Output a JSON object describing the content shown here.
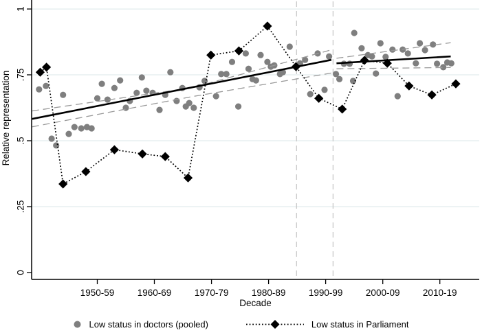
{
  "chart_data": {
    "type": "scatter",
    "title": "",
    "xlabel": "Decade",
    "ylabel": "Relative representation",
    "x_range": [
      1943,
      2021.4
    ],
    "y_range": [
      -0.026,
      1.034
    ],
    "x_ticks": [
      {
        "label": "1950-59",
        "year": 1954.5
      },
      {
        "label": "1960-69",
        "year": 1964.5
      },
      {
        "label": "1970-79",
        "year": 1974.5
      },
      {
        "label": "1980-89",
        "year": 1984.5
      },
      {
        "label": "1990-99",
        "year": 1994.5
      },
      {
        "label": "2000-09",
        "year": 2004.5
      },
      {
        "label": "2010-19",
        "year": 2014.5
      }
    ],
    "y_ticks": [
      {
        "label": "0",
        "value": 0
      },
      {
        "label": ".25",
        "value": 0.25
      },
      {
        "label": ".5",
        "value": 0.5
      },
      {
        "label": ".75",
        "value": 0.75
      },
      {
        "label": "1",
        "value": 1
      }
    ],
    "gridlines": {
      "values": [
        0.25,
        0.5,
        0.75,
        1
      ],
      "color": "#e2ecee"
    },
    "reference_lines": {
      "vertical_years": [
        1989.4,
        1995.8
      ],
      "color": "#c8c8c8",
      "style": "dashed"
    },
    "series": [
      {
        "name": "Low status in doctors (pooled)",
        "role": "scatter",
        "marker": "circle",
        "color": "#7f7f7f",
        "points": [
          [
            1944.3,
            0.695
          ],
          [
            1945.5,
            0.708
          ],
          [
            1946.5,
            0.508
          ],
          [
            1947.3,
            0.482
          ],
          [
            1948.5,
            0.674
          ],
          [
            1949.5,
            0.526
          ],
          [
            1950.5,
            0.552
          ],
          [
            1951.7,
            0.547
          ],
          [
            1952.7,
            0.552
          ],
          [
            1953.5,
            0.547
          ],
          [
            1954.5,
            0.661
          ],
          [
            1955.3,
            0.716
          ],
          [
            1956.3,
            0.656
          ],
          [
            1957.5,
            0.7
          ],
          [
            1958.5,
            0.729
          ],
          [
            1959.5,
            0.625
          ],
          [
            1960.2,
            0.651
          ],
          [
            1961.4,
            0.682
          ],
          [
            1962.3,
            0.74
          ],
          [
            1963.1,
            0.69
          ],
          [
            1964.2,
            0.682
          ],
          [
            1965.4,
            0.617
          ],
          [
            1966.4,
            0.674
          ],
          [
            1967.3,
            0.76
          ],
          [
            1968.4,
            0.651
          ],
          [
            1969.4,
            0.7
          ],
          [
            1970.0,
            0.63
          ],
          [
            1970.6,
            0.643
          ],
          [
            1971.4,
            0.625
          ],
          [
            1972.4,
            0.703
          ],
          [
            1973.3,
            0.727
          ],
          [
            1975.3,
            0.669
          ],
          [
            1976.2,
            0.753
          ],
          [
            1977.1,
            0.753
          ],
          [
            1978.1,
            0.799
          ],
          [
            1979.2,
            0.63
          ],
          [
            1980.5,
            0.831
          ],
          [
            1981.0,
            0.773
          ],
          [
            1981.7,
            0.734
          ],
          [
            1982.3,
            0.729
          ],
          [
            1983.1,
            0.825
          ],
          [
            1984.3,
            0.799
          ],
          [
            1984.9,
            0.781
          ],
          [
            1985.5,
            0.786
          ],
          [
            1986.5,
            0.753
          ],
          [
            1987.0,
            0.76
          ],
          [
            1988.2,
            0.857
          ],
          [
            1990.0,
            0.794
          ],
          [
            1990.9,
            0.807
          ],
          [
            1991.8,
            0.677
          ],
          [
            1993.1,
            0.831
          ],
          [
            1994.3,
            0.693
          ],
          [
            1995.1,
            0.82
          ],
          [
            1996.3,
            0.753
          ],
          [
            1996.9,
            0.734
          ],
          [
            1997.7,
            0.792
          ],
          [
            1998.7,
            0.792
          ],
          [
            1999.3,
            0.727
          ],
          [
            1999.5,
            0.909
          ],
          [
            2000.8,
            0.851
          ],
          [
            2001.9,
            0.825
          ],
          [
            2002.6,
            0.82
          ],
          [
            2003.3,
            0.755
          ],
          [
            2004.1,
            0.87
          ],
          [
            2005.0,
            0.818
          ],
          [
            2006.2,
            0.846
          ],
          [
            2007.1,
            0.669
          ],
          [
            2008.0,
            0.846
          ],
          [
            2008.9,
            0.831
          ],
          [
            2010.3,
            0.794
          ],
          [
            2011.0,
            0.87
          ],
          [
            2011.9,
            0.844
          ],
          [
            2013.3,
            0.865
          ],
          [
            2014.0,
            0.792
          ],
          [
            2015.1,
            0.779
          ],
          [
            2015.8,
            0.797
          ],
          [
            2016.5,
            0.794
          ]
        ]
      },
      {
        "name": "Low status in Parliament",
        "role": "line-scatter",
        "marker": "diamond",
        "line_style": "dotted",
        "color": "#000000",
        "points": [
          [
            1944.5,
            0.76
          ],
          [
            1945.6,
            0.779
          ],
          [
            1948.5,
            0.336
          ],
          [
            1952.5,
            0.383
          ],
          [
            1957.5,
            0.466
          ],
          [
            1962.4,
            0.45
          ],
          [
            1966.4,
            0.44
          ],
          [
            1970.4,
            0.359
          ],
          [
            1974.4,
            0.825
          ],
          [
            1979.3,
            0.841
          ],
          [
            1984.3,
            0.935
          ],
          [
            1989.3,
            0.781
          ],
          [
            1993.3,
            0.661
          ],
          [
            1997.4,
            0.62
          ],
          [
            2001.3,
            0.805
          ],
          [
            2005.3,
            0.794
          ],
          [
            2009.1,
            0.708
          ],
          [
            2013.1,
            0.674
          ],
          [
            2017.3,
            0.716
          ]
        ]
      },
      {
        "name": "linear trend (pre break)",
        "role": "trend",
        "line_style": "solid",
        "color": "#000000",
        "points": [
          [
            1943.1,
            0.583
          ],
          [
            1995.5,
            0.807
          ]
        ]
      },
      {
        "name": "linear trend (post break)",
        "role": "trend",
        "line_style": "solid",
        "color": "#000000",
        "points": [
          [
            1996.4,
            0.794
          ],
          [
            2016.4,
            0.82
          ]
        ]
      },
      {
        "name": "CI upper (pre break)",
        "role": "ci",
        "line_style": "dashed",
        "color": "#999999",
        "points": [
          [
            1943.1,
            0.613
          ],
          [
            1971.0,
            0.701
          ],
          [
            1995.5,
            0.845
          ]
        ]
      },
      {
        "name": "CI lower (pre break)",
        "role": "ci",
        "line_style": "dashed",
        "color": "#999999",
        "points": [
          [
            1943.1,
            0.553
          ],
          [
            1971.0,
            0.667
          ],
          [
            1995.5,
            0.757
          ]
        ]
      },
      {
        "name": "CI upper (post break)",
        "role": "ci",
        "line_style": "dashed",
        "color": "#999999",
        "points": [
          [
            1996.4,
            0.813
          ],
          [
            2016.4,
            0.872
          ]
        ]
      },
      {
        "name": "CI lower (post break)",
        "role": "ci",
        "line_style": "dashed",
        "color": "#999999",
        "points": [
          [
            1996.4,
            0.773
          ],
          [
            2016.4,
            0.778
          ]
        ]
      }
    ]
  },
  "legend": {
    "items": [
      {
        "label": "Low status in doctors (pooled)",
        "marker": "gray-circle"
      },
      {
        "label": "Low status in Parliament",
        "marker": "black-diamond-dotted-line"
      }
    ]
  }
}
